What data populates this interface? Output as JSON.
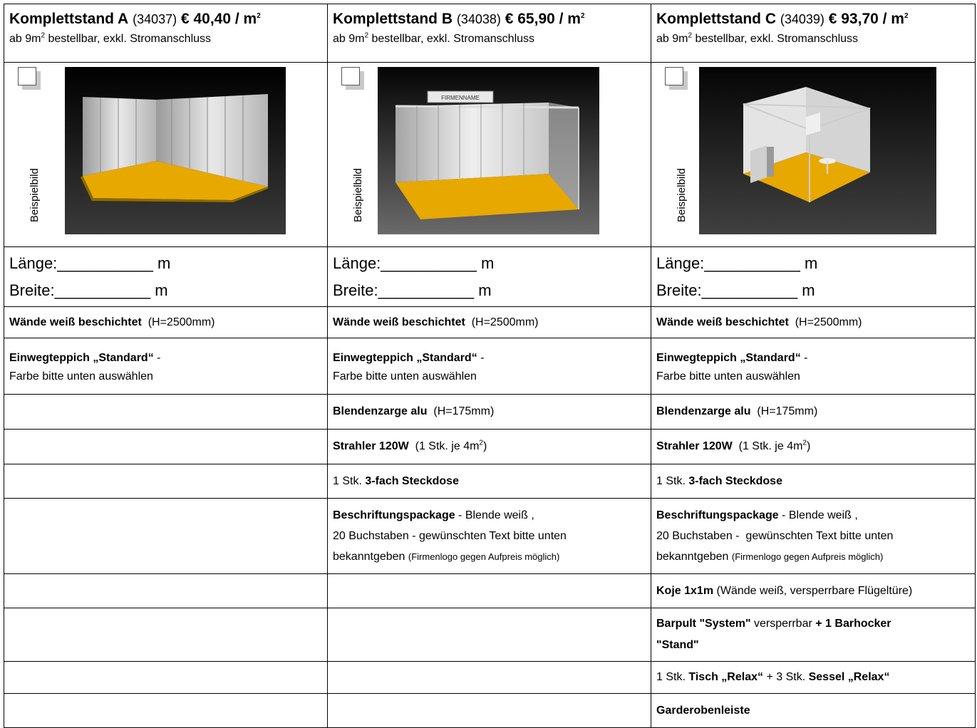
{
  "columns": [
    {
      "title": "Komplettstand A",
      "code": "(34037)",
      "price": "€ 40,40 / m",
      "price_sup": "2",
      "sub_pre": "ab 9m",
      "sub_sup": "2",
      "sub_post": " bestellbar, exkl. Stromanschluss",
      "image_label": "Beispielbild",
      "laenge": "Länge:___________ m",
      "breite": "Breite:___________ m",
      "walls_bold": "Wände weiß beschichtet",
      "walls_rest": "  (H=2500mm)",
      "carpet_bold": "Einwegteppich „Standard“",
      "carpet_rest": " -",
      "carpet_line2": "Farbe bitte unten auswählen"
    },
    {
      "title": "Komplettstand B",
      "code": "(34038)",
      "price": "€ 65,90 / m",
      "price_sup": "2",
      "sub_pre": "ab 9m",
      "sub_sup": "2",
      "sub_post": " bestellbar, exkl. Stromanschluss",
      "image_label": "Beispielbild",
      "sign_text": "FIRMENNAME",
      "laenge": "Länge:___________ m",
      "breite": "Breite:___________ m",
      "walls_bold": "Wände weiß beschichtet",
      "walls_rest": "  (H=2500mm)",
      "carpet_bold": "Einwegteppich „Standard“",
      "carpet_rest": " -",
      "carpet_line2": "Farbe bitte unten auswählen",
      "blende_bold": "Blendenzarge alu",
      "blende_rest": "  (H=175mm)",
      "strahler_bold": "Strahler 120W",
      "strahler_pre": "  (1 Stk. je 4m",
      "strahler_sup": "2",
      "strahler_post": ")",
      "steck_pre": "1 Stk. ",
      "steck_bold": "3-fach Steckdose",
      "beschr_bold": "Beschriftungspackage",
      "beschr_rest": " - Blende weiß ,",
      "beschr_line2": "20 Buchstaben - gewünschten Text bitte unten",
      "beschr_line3": "bekanntgeben ",
      "beschr_small": "(Firmenlogo gegen Aufpreis möglich)"
    },
    {
      "title": "Komplettstand C",
      "code": "(34039)",
      "price": "€ 93,70 / m",
      "price_sup": "2",
      "sub_pre": "ab 9m",
      "sub_sup": "2",
      "sub_post": " bestellbar, exkl. Stromanschluss",
      "image_label": "Beispielbild",
      "laenge": "Länge:___________ m",
      "breite": "Breite:___________ m",
      "walls_bold": "Wände weiß beschichtet",
      "walls_rest": "  (H=2500mm)",
      "carpet_bold": "Einwegteppich „Standard“",
      "carpet_rest": " -",
      "carpet_line2": "Farbe bitte unten auswählen",
      "blende_bold": "Blendenzarge alu",
      "blende_rest": "  (H=175mm)",
      "strahler_bold": "Strahler 120W",
      "strahler_pre": "  (1 Stk. je 4m",
      "strahler_sup": "2",
      "strahler_post": ")",
      "steck_pre": "1 Stk. ",
      "steck_bold": "3-fach Steckdose",
      "beschr_bold": "Beschriftungspackage",
      "beschr_rest": " - Blende weiß ,",
      "beschr_line2": "20 Buchstaben -  gewünschten Text bitte unten",
      "beschr_line3": "bekanntgeben ",
      "beschr_small": "(Firmenlogo gegen Aufpreis möglich)",
      "koje_bold": "Koje 1x1m",
      "koje_rest": " (Wände weiß, versperrbare Flügeltüre)",
      "bar_bold": "Barpult \"System\"",
      "bar_rest": " versperrbar ",
      "bar_bold2": "+ 1 Barhocker",
      "bar_line2": "\"Stand\"",
      "tisch_pre": "1 Stk. ",
      "tisch_bold": "Tisch „Relax“",
      "tisch_mid": " + 3 Stk. ",
      "tisch_bold2": "Sessel „Relax“",
      "garderobe": "Garderobenleiste"
    }
  ],
  "colors": {
    "carpet": "#f0b400",
    "border": "#000000",
    "checkbox_shadow": "#c8c8c8"
  }
}
